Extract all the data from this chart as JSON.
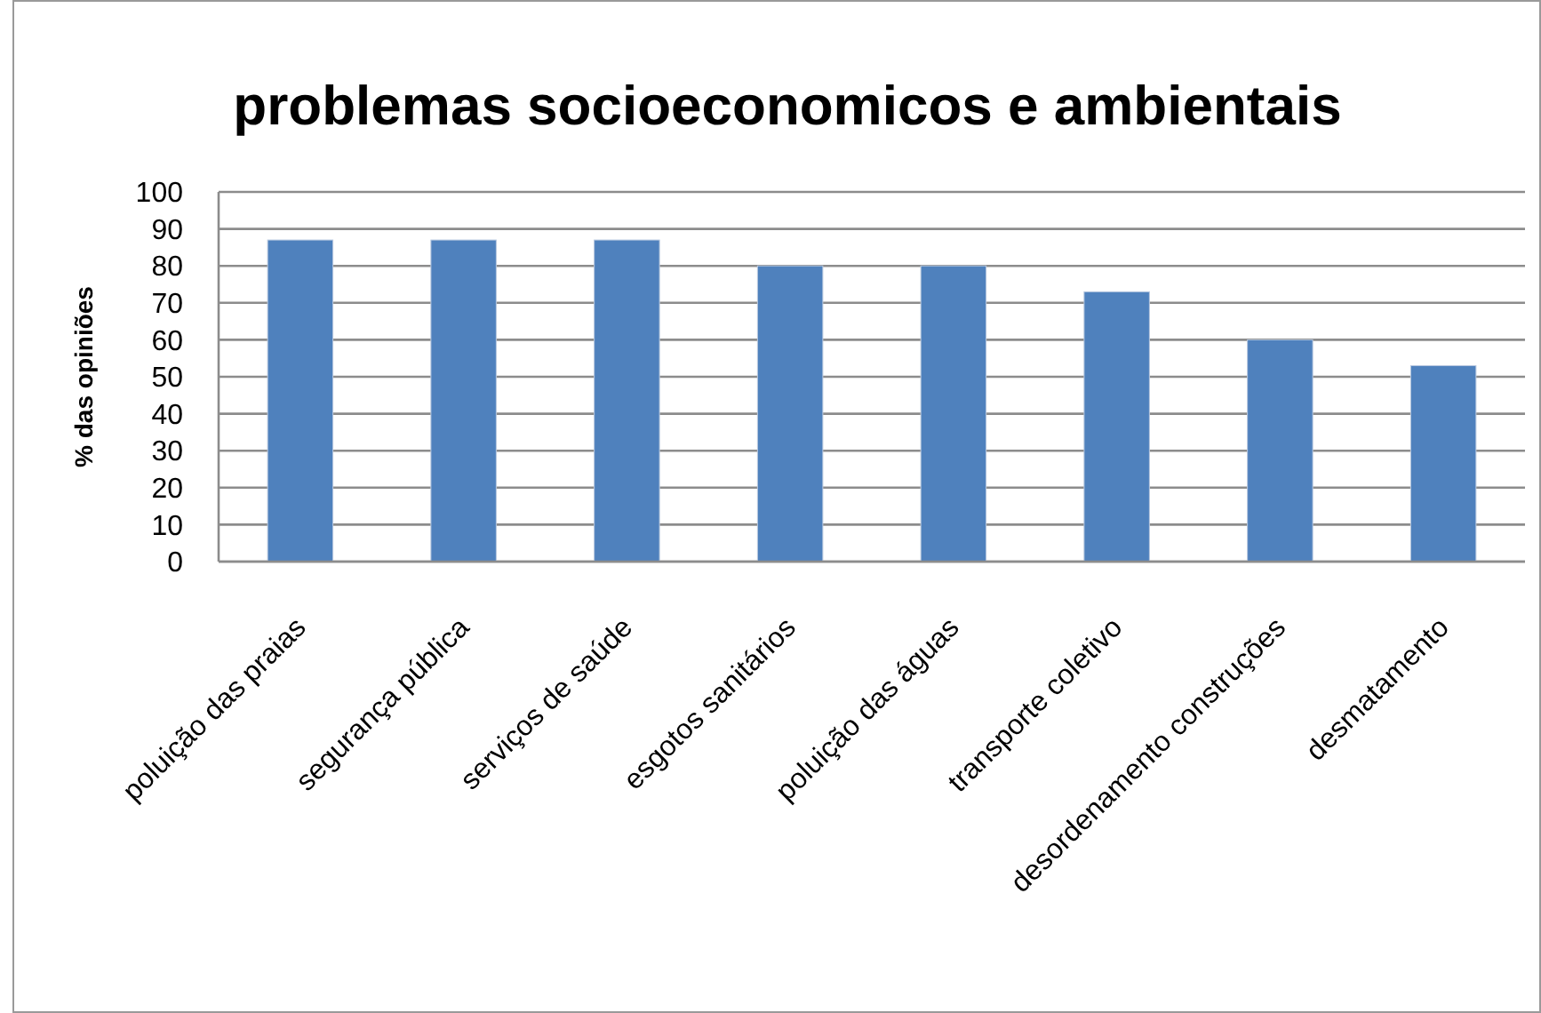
{
  "chart_data": {
    "type": "bar",
    "title": "problemas socioeconomicos e ambientais",
    "ylabel": "% das opiniões",
    "categories": [
      "poluição das praias",
      "segurança pública",
      "serviços de saúde",
      "esgotos sanitários",
      "poluição das águas",
      "transporte coletivo",
      "desordenamento construções",
      "desmatamento"
    ],
    "values": [
      87,
      87,
      87,
      80,
      80,
      73,
      60,
      53
    ],
    "color": "#4f81bd",
    "ylim": [
      0,
      100
    ],
    "yticks": [
      0,
      10,
      20,
      30,
      40,
      50,
      60,
      70,
      80,
      90,
      100
    ],
    "grid": "y"
  }
}
